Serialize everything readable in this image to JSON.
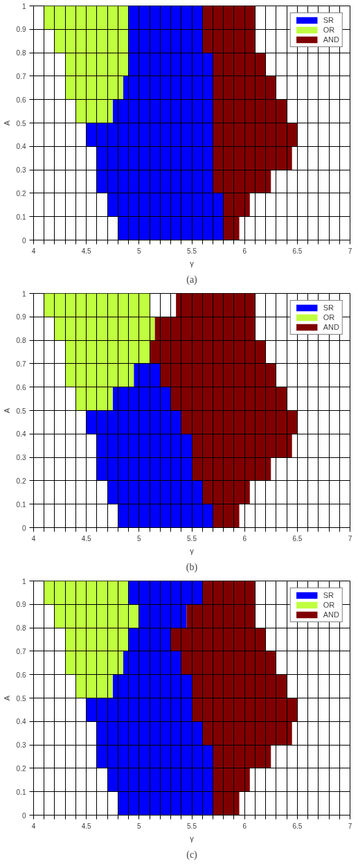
{
  "chart_data": [
    {
      "type": "bar",
      "orientation": "horizontal",
      "xlabel": "γ",
      "ylabel": "A",
      "annotations": [
        "(a)"
      ],
      "x": [
        0.05,
        0.15,
        0.25,
        0.35,
        0.45,
        0.55,
        0.65,
        0.75,
        0.85,
        0.95
      ],
      "series": [
        {
          "name": "SR",
          "color": "#0000ff",
          "base": [
            4.8,
            4.7,
            4.6,
            4.6,
            4.5,
            4.75,
            4.85,
            4.9,
            4.9,
            4.9
          ],
          "values": [
            1.0,
            1.1,
            1.1,
            1.1,
            1.2,
            0.95,
            0.85,
            0.8,
            0.7,
            0.7
          ]
        },
        {
          "name": "OR",
          "color": "#bfff3f",
          "base": [
            null,
            null,
            null,
            null,
            null,
            4.4,
            4.3,
            4.3,
            4.2,
            4.1
          ],
          "values": [
            null,
            null,
            null,
            null,
            null,
            0.35,
            0.55,
            0.6,
            0.7,
            0.8
          ]
        },
        {
          "name": "AND",
          "color": "#800000",
          "base": [
            5.8,
            5.8,
            5.7,
            5.7,
            5.7,
            5.7,
            5.7,
            5.7,
            5.6,
            5.6
          ],
          "values": [
            0.15,
            0.25,
            0.55,
            0.75,
            0.8,
            0.7,
            0.6,
            0.5,
            0.5,
            0.5
          ]
        }
      ],
      "xlim": [
        4,
        7
      ],
      "ylim": [
        0,
        1
      ],
      "xticks": [
        4,
        {
          "value": 4.1,
          "label": null
        },
        {
          "value": 4.2,
          "label": null
        },
        {
          "value": 4.3,
          "label": null
        },
        {
          "value": 4.4,
          "label": null
        },
        4.5,
        {
          "value": 4.6,
          "label": null
        },
        {
          "value": 4.7,
          "label": null
        },
        {
          "value": 4.8,
          "label": null
        },
        {
          "value": 4.9,
          "label": null
        },
        5,
        {
          "value": 5.1,
          "label": null
        },
        {
          "value": 5.2,
          "label": null
        },
        {
          "value": 5.3,
          "label": null
        },
        {
          "value": 5.4,
          "label": null
        },
        5.5,
        {
          "value": 5.6,
          "label": null
        },
        {
          "value": 5.7,
          "label": null
        },
        {
          "value": 5.8,
          "label": null
        },
        {
          "value": 5.9,
          "label": null
        },
        6,
        {
          "value": 6.1,
          "label": null
        },
        {
          "value": 6.2,
          "label": null
        },
        {
          "value": 6.3,
          "label": null
        },
        {
          "value": 6.4,
          "label": null
        },
        6.5,
        {
          "value": 6.6,
          "label": null
        },
        {
          "value": 6.7,
          "label": null
        },
        {
          "value": 6.8,
          "label": null
        },
        {
          "value": 6.9,
          "label": null
        },
        7
      ],
      "yticks": [
        0,
        0.1,
        0.2,
        0.3,
        0.4,
        0.5,
        0.6,
        0.7,
        0.8,
        0.9,
        1
      ],
      "grid": true,
      "legend": "top right"
    },
    {
      "type": "bar",
      "orientation": "horizontal",
      "xlabel": "γ",
      "ylabel": "A",
      "annotations": [
        "(b)"
      ],
      "x": [
        0.05,
        0.15,
        0.25,
        0.35,
        0.45,
        0.55,
        0.65,
        0.75,
        0.85,
        0.95
      ],
      "series": [
        {
          "name": "SR",
          "color": "#0000ff",
          "base": [
            4.8,
            4.7,
            4.6,
            4.6,
            4.5,
            4.75,
            4.95,
            null,
            null,
            null
          ],
          "values": [
            0.9,
            0.9,
            0.9,
            0.9,
            0.9,
            0.55,
            0.25,
            null,
            null,
            null
          ]
        },
        {
          "name": "OR",
          "color": "#bfff3f",
          "base": [
            null,
            null,
            null,
            null,
            null,
            4.4,
            4.3,
            4.3,
            4.2,
            4.1
          ],
          "values": [
            null,
            null,
            null,
            null,
            null,
            0.35,
            0.65,
            0.8,
            0.95,
            1.0
          ]
        },
        {
          "name": "AND",
          "color": "#800000",
          "base": [
            5.7,
            5.6,
            5.5,
            5.5,
            5.4,
            5.3,
            5.2,
            5.1,
            5.15,
            5.35
          ],
          "values": [
            0.25,
            0.45,
            0.75,
            0.95,
            1.1,
            1.1,
            1.1,
            1.1,
            0.95,
            0.75
          ]
        }
      ],
      "xlim": [
        4,
        7
      ],
      "ylim": [
        0,
        1
      ],
      "xticks": [
        4,
        {
          "value": 4.1,
          "label": null
        },
        {
          "value": 4.2,
          "label": null
        },
        {
          "value": 4.3,
          "label": null
        },
        {
          "value": 4.4,
          "label": null
        },
        4.5,
        {
          "value": 4.6,
          "label": null
        },
        {
          "value": 4.7,
          "label": null
        },
        {
          "value": 4.8,
          "label": null
        },
        {
          "value": 4.9,
          "label": null
        },
        5,
        {
          "value": 5.1,
          "label": null
        },
        {
          "value": 5.2,
          "label": null
        },
        {
          "value": 5.3,
          "label": null
        },
        {
          "value": 5.4,
          "label": null
        },
        5.5,
        {
          "value": 5.6,
          "label": null
        },
        {
          "value": 5.7,
          "label": null
        },
        {
          "value": 5.8,
          "label": null
        },
        {
          "value": 5.9,
          "label": null
        },
        6,
        {
          "value": 6.1,
          "label": null
        },
        {
          "value": 6.2,
          "label": null
        },
        {
          "value": 6.3,
          "label": null
        },
        {
          "value": 6.4,
          "label": null
        },
        6.5,
        {
          "value": 6.6,
          "label": null
        },
        {
          "value": 6.7,
          "label": null
        },
        {
          "value": 6.8,
          "label": null
        },
        {
          "value": 6.9,
          "label": null
        },
        7
      ],
      "yticks": [
        0,
        0.1,
        0.2,
        0.3,
        0.4,
        0.5,
        0.6,
        0.7,
        0.8,
        0.9,
        1
      ],
      "grid": true,
      "legend": "top right"
    },
    {
      "type": "bar",
      "orientation": "horizontal",
      "xlabel": "γ",
      "ylabel": "A",
      "annotations": [
        "(c)"
      ],
      "x": [
        0.05,
        0.15,
        0.25,
        0.35,
        0.45,
        0.55,
        0.65,
        0.75,
        0.85,
        0.95
      ],
      "series": [
        {
          "name": "SR",
          "color": "#0000ff",
          "base": [
            4.8,
            4.7,
            4.6,
            4.6,
            4.5,
            4.75,
            4.85,
            4.9,
            5.0,
            4.9
          ],
          "values": [
            0.9,
            1.0,
            1.1,
            1.0,
            1.0,
            0.75,
            0.55,
            0.4,
            0.45,
            0.7
          ]
        },
        {
          "name": "OR",
          "color": "#bfff3f",
          "base": [
            null,
            null,
            null,
            null,
            null,
            4.4,
            4.3,
            4.3,
            4.2,
            4.1
          ],
          "values": [
            null,
            null,
            null,
            null,
            null,
            0.35,
            0.55,
            0.6,
            0.8,
            0.8
          ]
        },
        {
          "name": "AND",
          "color": "#800000",
          "base": [
            5.7,
            5.7,
            5.7,
            5.6,
            5.5,
            5.5,
            5.4,
            5.3,
            5.45,
            5.6
          ],
          "values": [
            0.25,
            0.35,
            0.55,
            0.85,
            1.0,
            0.9,
            0.9,
            0.9,
            0.65,
            0.5
          ]
        }
      ],
      "xlim": [
        4,
        7
      ],
      "ylim": [
        0,
        1
      ],
      "xticks": [
        4,
        {
          "value": 4.1,
          "label": null
        },
        {
          "value": 4.2,
          "label": null
        },
        {
          "value": 4.3,
          "label": null
        },
        {
          "value": 4.4,
          "label": null
        },
        4.5,
        {
          "value": 4.6,
          "label": null
        },
        {
          "value": 4.7,
          "label": null
        },
        {
          "value": 4.8,
          "label": null
        },
        {
          "value": 4.9,
          "label": null
        },
        5,
        {
          "value": 5.1,
          "label": null
        },
        {
          "value": 5.2,
          "label": null
        },
        {
          "value": 5.3,
          "label": null
        },
        {
          "value": 5.4,
          "label": null
        },
        5.5,
        {
          "value": 5.6,
          "label": null
        },
        {
          "value": 5.7,
          "label": null
        },
        {
          "value": 5.8,
          "label": null
        },
        {
          "value": 5.9,
          "label": null
        },
        6,
        {
          "value": 6.1,
          "label": null
        },
        {
          "value": 6.2,
          "label": null
        },
        {
          "value": 6.3,
          "label": null
        },
        {
          "value": 6.4,
          "label": null
        },
        6.5,
        {
          "value": 6.6,
          "label": null
        },
        {
          "value": 6.7,
          "label": null
        },
        {
          "value": 6.8,
          "label": null
        },
        {
          "value": 6.9,
          "label": null
        },
        7
      ],
      "yticks": [
        0,
        0.1,
        0.2,
        0.3,
        0.4,
        0.5,
        0.6,
        0.7,
        0.8,
        0.9,
        1
      ],
      "grid": true,
      "legend": "top right"
    }
  ]
}
